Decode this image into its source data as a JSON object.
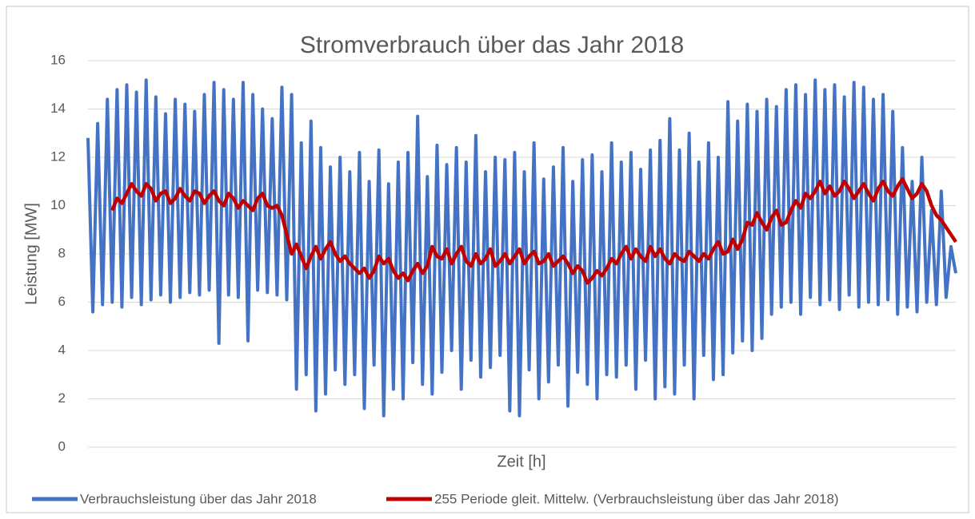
{
  "chart_data": {
    "type": "line",
    "title": "Stromverbrauch über das Jahr 2018",
    "x_label": "Zeit [h]",
    "y_label": "Leistung [MW]",
    "ylim": [
      0,
      16
    ],
    "yticks": [
      0,
      2,
      4,
      6,
      8,
      10,
      12,
      14,
      16
    ],
    "grid": true,
    "legend": "bottom",
    "series": [
      {
        "name": "Verbrauchsleistung über das Jahr 2018",
        "color": "#4472c4",
        "values": [
          12.8,
          5.6,
          13.4,
          5.9,
          14.4,
          6.0,
          14.8,
          5.8,
          15.0,
          6.2,
          14.7,
          5.9,
          15.2,
          6.1,
          14.5,
          6.3,
          13.8,
          6.0,
          14.4,
          6.2,
          14.2,
          6.4,
          13.9,
          6.3,
          14.6,
          6.5,
          15.1,
          4.3,
          14.8,
          6.3,
          14.4,
          6.2,
          15.1,
          4.4,
          14.6,
          6.5,
          14.0,
          6.4,
          13.6,
          6.3,
          14.9,
          6.1,
          14.6,
          2.4,
          12.6,
          3.0,
          13.5,
          1.5,
          12.4,
          2.2,
          11.6,
          3.2,
          12.0,
          2.6,
          11.4,
          3.0,
          12.2,
          1.6,
          11.0,
          3.4,
          12.3,
          1.3,
          10.9,
          2.4,
          11.8,
          2.0,
          12.2,
          3.5,
          13.7,
          2.6,
          11.2,
          2.2,
          12.5,
          3.1,
          11.7,
          4.0,
          12.4,
          2.4,
          11.8,
          3.6,
          12.9,
          2.9,
          11.4,
          3.3,
          12.0,
          3.8,
          11.9,
          1.5,
          12.2,
          1.3,
          11.4,
          3.2,
          12.6,
          2.0,
          11.1,
          2.7,
          11.6,
          3.4,
          12.4,
          1.7,
          11.0,
          3.1,
          11.9,
          2.6,
          12.1,
          2.0,
          11.4,
          3.0,
          12.6,
          2.9,
          11.8,
          3.4,
          12.2,
          2.4,
          11.5,
          3.6,
          12.3,
          2.0,
          12.7,
          2.5,
          13.6,
          2.2,
          12.3,
          3.4,
          13.0,
          2.0,
          11.8,
          3.8,
          12.6,
          2.8,
          12.0,
          3.0,
          14.3,
          3.9,
          13.5,
          4.4,
          14.2,
          4.0,
          13.9,
          4.5,
          14.4,
          5.5,
          14.1,
          5.8,
          14.8,
          6.0,
          15.0,
          5.5,
          14.6,
          6.2,
          15.2,
          5.9,
          14.8,
          6.1,
          15.0,
          5.7,
          14.5,
          6.3,
          15.1,
          5.8,
          14.9,
          6.0,
          14.4,
          5.9,
          14.6,
          6.1,
          13.9,
          5.5,
          12.4,
          5.8,
          11.0,
          5.6,
          12.0,
          6.0,
          9.8,
          5.9,
          10.6,
          6.2,
          8.3,
          7.2
        ]
      },
      {
        "name": "255 Periode gleit. Mittelw. (Verbrauchsleistung über das Jahr 2018)",
        "color": "#c00000",
        "values": [
          null,
          null,
          null,
          null,
          null,
          9.8,
          10.3,
          10.1,
          10.5,
          10.9,
          10.6,
          10.4,
          10.9,
          10.7,
          10.2,
          10.5,
          10.6,
          10.1,
          10.3,
          10.7,
          10.4,
          10.2,
          10.6,
          10.5,
          10.1,
          10.4,
          10.6,
          10.2,
          10.0,
          10.5,
          10.3,
          9.9,
          10.2,
          10.0,
          9.8,
          10.3,
          10.5,
          10.0,
          9.9,
          10.0,
          9.6,
          8.8,
          8.0,
          8.4,
          7.9,
          7.4,
          7.9,
          8.3,
          7.8,
          8.2,
          8.5,
          8.0,
          7.7,
          7.9,
          7.6,
          7.4,
          7.2,
          7.4,
          7.0,
          7.3,
          7.9,
          7.6,
          7.8,
          7.3,
          7.0,
          7.2,
          6.9,
          7.3,
          7.6,
          7.2,
          7.5,
          8.3,
          7.9,
          7.8,
          8.2,
          7.6,
          8.0,
          8.3,
          7.7,
          7.5,
          8.0,
          7.6,
          7.8,
          8.2,
          7.5,
          7.7,
          8.0,
          7.6,
          7.9,
          8.2,
          7.6,
          7.9,
          8.1,
          7.6,
          7.7,
          8.0,
          7.5,
          7.7,
          7.9,
          7.6,
          7.2,
          7.5,
          7.3,
          6.8,
          7.0,
          7.3,
          7.1,
          7.4,
          7.8,
          7.6,
          8.0,
          8.3,
          7.8,
          8.2,
          7.9,
          7.7,
          8.3,
          7.9,
          8.2,
          7.8,
          7.6,
          8.0,
          7.8,
          7.7,
          8.1,
          7.9,
          7.7,
          8.0,
          7.8,
          8.2,
          8.5,
          8.0,
          8.1,
          8.6,
          8.2,
          8.6,
          9.3,
          9.2,
          9.7,
          9.3,
          9.0,
          9.5,
          9.8,
          9.2,
          9.3,
          9.8,
          10.2,
          9.9,
          10.5,
          10.3,
          10.6,
          11.0,
          10.5,
          10.8,
          10.4,
          10.6,
          11.0,
          10.7,
          10.3,
          10.6,
          10.9,
          10.5,
          10.2,
          10.7,
          11.0,
          10.6,
          10.4,
          10.8,
          11.1,
          10.7,
          10.3,
          10.5,
          10.9,
          10.6,
          10.0,
          9.6,
          9.4,
          9.1,
          8.8,
          8.5
        ]
      }
    ]
  }
}
